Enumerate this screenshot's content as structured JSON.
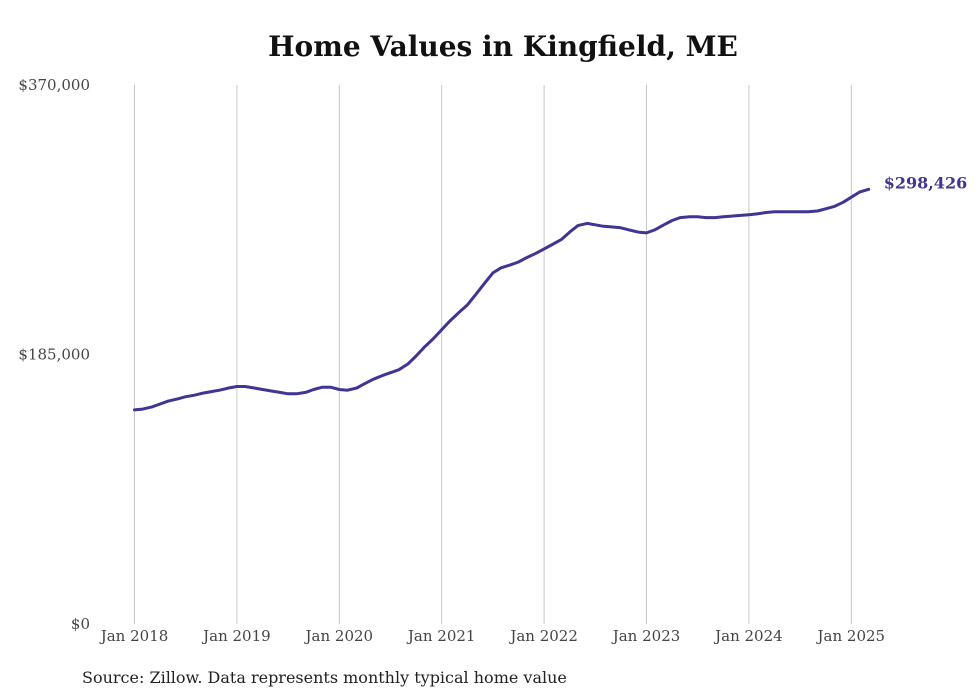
{
  "chart_data": {
    "type": "line",
    "title": "Home Values in Kingfield, ME",
    "source": "Source: Zillow. Data represents monthly typical home value",
    "y_ticks": [
      "$0",
      "$185,000",
      "$370,000"
    ],
    "y_tick_values": [
      0,
      185000,
      370000
    ],
    "ylim": [
      0,
      370000
    ],
    "x_ticks": [
      "Jan 2018",
      "Jan 2019",
      "Jan 2020",
      "Jan 2021",
      "Jan 2022",
      "Jan 2023",
      "Jan 2024",
      "Jan 2025"
    ],
    "grid": "vertical",
    "line_color": "#3f3593",
    "end_label": "$298,426",
    "series": [
      {
        "values": [
          [
            2018.0,
            147000
          ],
          [
            2018.08,
            147500
          ],
          [
            2018.17,
            149000
          ],
          [
            2018.25,
            151000
          ],
          [
            2018.33,
            153000
          ],
          [
            2018.42,
            154500
          ],
          [
            2018.5,
            156000
          ],
          [
            2018.58,
            157000
          ],
          [
            2018.67,
            158500
          ],
          [
            2018.75,
            159500
          ],
          [
            2018.83,
            160500
          ],
          [
            2018.92,
            162000
          ],
          [
            2019.0,
            163000
          ],
          [
            2019.08,
            163000
          ],
          [
            2019.17,
            162000
          ],
          [
            2019.25,
            161000
          ],
          [
            2019.33,
            160000
          ],
          [
            2019.42,
            159000
          ],
          [
            2019.5,
            158000
          ],
          [
            2019.58,
            158000
          ],
          [
            2019.67,
            159000
          ],
          [
            2019.75,
            161000
          ],
          [
            2019.83,
            162500
          ],
          [
            2019.92,
            162500
          ],
          [
            2020.0,
            161000
          ],
          [
            2020.08,
            160500
          ],
          [
            2020.17,
            162000
          ],
          [
            2020.25,
            165000
          ],
          [
            2020.33,
            168000
          ],
          [
            2020.42,
            170500
          ],
          [
            2020.5,
            172500
          ],
          [
            2020.58,
            174500
          ],
          [
            2020.67,
            178500
          ],
          [
            2020.75,
            184000
          ],
          [
            2020.83,
            190000
          ],
          [
            2020.92,
            196000
          ],
          [
            2021.0,
            202000
          ],
          [
            2021.08,
            208000
          ],
          [
            2021.17,
            214000
          ],
          [
            2021.25,
            219000
          ],
          [
            2021.33,
            226000
          ],
          [
            2021.42,
            234000
          ],
          [
            2021.5,
            241000
          ],
          [
            2021.58,
            244500
          ],
          [
            2021.67,
            246500
          ],
          [
            2021.75,
            248500
          ],
          [
            2021.83,
            251500
          ],
          [
            2021.92,
            254500
          ],
          [
            2022.0,
            257500
          ],
          [
            2022.08,
            260500
          ],
          [
            2022.17,
            264000
          ],
          [
            2022.25,
            269000
          ],
          [
            2022.33,
            273500
          ],
          [
            2022.42,
            275000
          ],
          [
            2022.5,
            274000
          ],
          [
            2022.58,
            273000
          ],
          [
            2022.67,
            272500
          ],
          [
            2022.75,
            272000
          ],
          [
            2022.83,
            270500
          ],
          [
            2022.92,
            269000
          ],
          [
            2023.0,
            268500
          ],
          [
            2023.08,
            270500
          ],
          [
            2023.17,
            274000
          ],
          [
            2023.25,
            277000
          ],
          [
            2023.33,
            279000
          ],
          [
            2023.42,
            279500
          ],
          [
            2023.5,
            279500
          ],
          [
            2023.58,
            279000
          ],
          [
            2023.67,
            279000
          ],
          [
            2023.75,
            279500
          ],
          [
            2023.83,
            280000
          ],
          [
            2023.92,
            280500
          ],
          [
            2024.0,
            281000
          ],
          [
            2024.08,
            281500
          ],
          [
            2024.17,
            282500
          ],
          [
            2024.25,
            283000
          ],
          [
            2024.33,
            283000
          ],
          [
            2024.42,
            283000
          ],
          [
            2024.5,
            283000
          ],
          [
            2024.58,
            283000
          ],
          [
            2024.67,
            283500
          ],
          [
            2024.75,
            285000
          ],
          [
            2024.83,
            286500
          ],
          [
            2024.92,
            289500
          ],
          [
            2025.0,
            293000
          ],
          [
            2025.08,
            296500
          ],
          [
            2025.17,
            298426
          ]
        ]
      }
    ]
  }
}
